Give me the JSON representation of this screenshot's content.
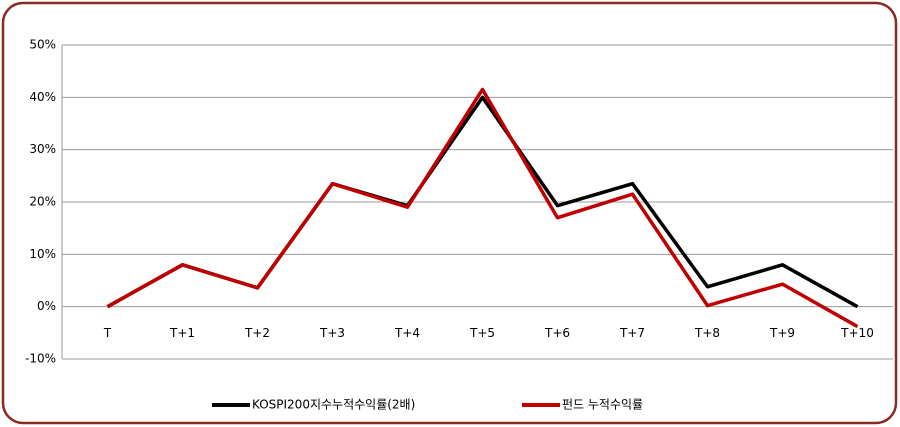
{
  "chart_data": {
    "type": "line",
    "categories": [
      "T",
      "T+1",
      "T+2",
      "T+3",
      "T+4",
      "T+5",
      "T+6",
      "T+7",
      "T+8",
      "T+9",
      "T+10"
    ],
    "series": [
      {
        "name": "KOSPI200지수누적수익률(2배)",
        "color": "#000000",
        "values": [
          0,
          8,
          3.6,
          23.5,
          19.3,
          40,
          19.3,
          23.5,
          3.8,
          8,
          0
        ]
      },
      {
        "name": "펀드 누적수익률",
        "color": "#c00000",
        "values": [
          0,
          8,
          3.6,
          23.5,
          19,
          41.5,
          17,
          21.5,
          0.2,
          4.3,
          -3.8
        ]
      }
    ],
    "ylim": [
      -10,
      50
    ],
    "yticks": [
      {
        "value": -10,
        "label": "-10%"
      },
      {
        "value": 0,
        "label": "0%"
      },
      {
        "value": 10,
        "label": "10%"
      },
      {
        "value": 20,
        "label": "20%"
      },
      {
        "value": 30,
        "label": "30%"
      },
      {
        "value": 40,
        "label": "40%"
      },
      {
        "value": 50,
        "label": "50%"
      }
    ],
    "grid": true,
    "legend": "bottom"
  }
}
